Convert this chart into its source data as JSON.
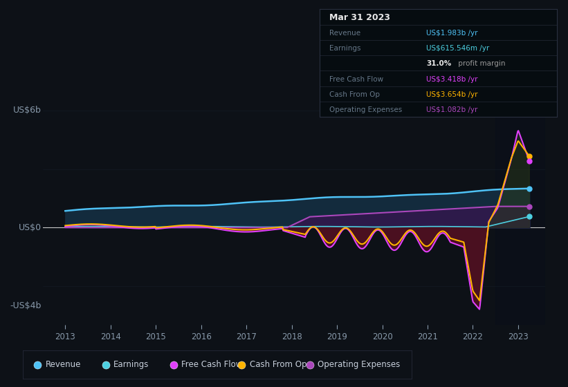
{
  "bg_color": "#0d1117",
  "plot_bg_color": "#111827",
  "revenue_color": "#4fc3f7",
  "earnings_color": "#4dd0e1",
  "fcf_color": "#e040fb",
  "cashop_color": "#ffb300",
  "opex_color": "#ab47bc",
  "revenue_fill": "#132b3d",
  "earnings_fill": "#0d3a3a",
  "opex_fill": "#2d1a4a",
  "fcf_neg_fill": "#4a1020",
  "text_color": "#8899aa",
  "grid_color": "#1e2a38",
  "zero_line_color": "#e0e0e0",
  "info_box_bg": "#060c10",
  "info_box_border": "#2a2a35",
  "x_min": 2012.5,
  "x_max": 2023.6,
  "y_min": -5.0,
  "y_max": 6.8,
  "x_ticks": [
    2013,
    2014,
    2015,
    2016,
    2017,
    2018,
    2019,
    2020,
    2021,
    2022,
    2023
  ],
  "info_title": "Mar 31 2023",
  "info_rows": [
    {
      "label": "Revenue",
      "value": "US$1.983b",
      "suffix": " /yr",
      "color": "#4fc3f7"
    },
    {
      "label": "Earnings",
      "value": "US$615.546m",
      "suffix": " /yr",
      "color": "#4dd0e1"
    },
    {
      "label": "",
      "bold_value": "31.0%",
      "suffix": " profit margin",
      "color": "#ffffff"
    },
    {
      "label": "Free Cash Flow",
      "value": "US$3.418b",
      "suffix": " /yr",
      "color": "#e040fb"
    },
    {
      "label": "Cash From Op",
      "value": "US$3.654b",
      "suffix": " /yr",
      "color": "#ffb300"
    },
    {
      "label": "Operating Expenses",
      "value": "US$1.082b",
      "suffix": " /yr",
      "color": "#ab47bc"
    }
  ],
  "legend_items": [
    {
      "label": "Revenue",
      "color": "#4fc3f7"
    },
    {
      "label": "Earnings",
      "color": "#4dd0e1"
    },
    {
      "label": "Free Cash Flow",
      "color": "#e040fb"
    },
    {
      "label": "Cash From Op",
      "color": "#ffb300"
    },
    {
      "label": "Operating Expenses",
      "color": "#ab47bc"
    }
  ]
}
